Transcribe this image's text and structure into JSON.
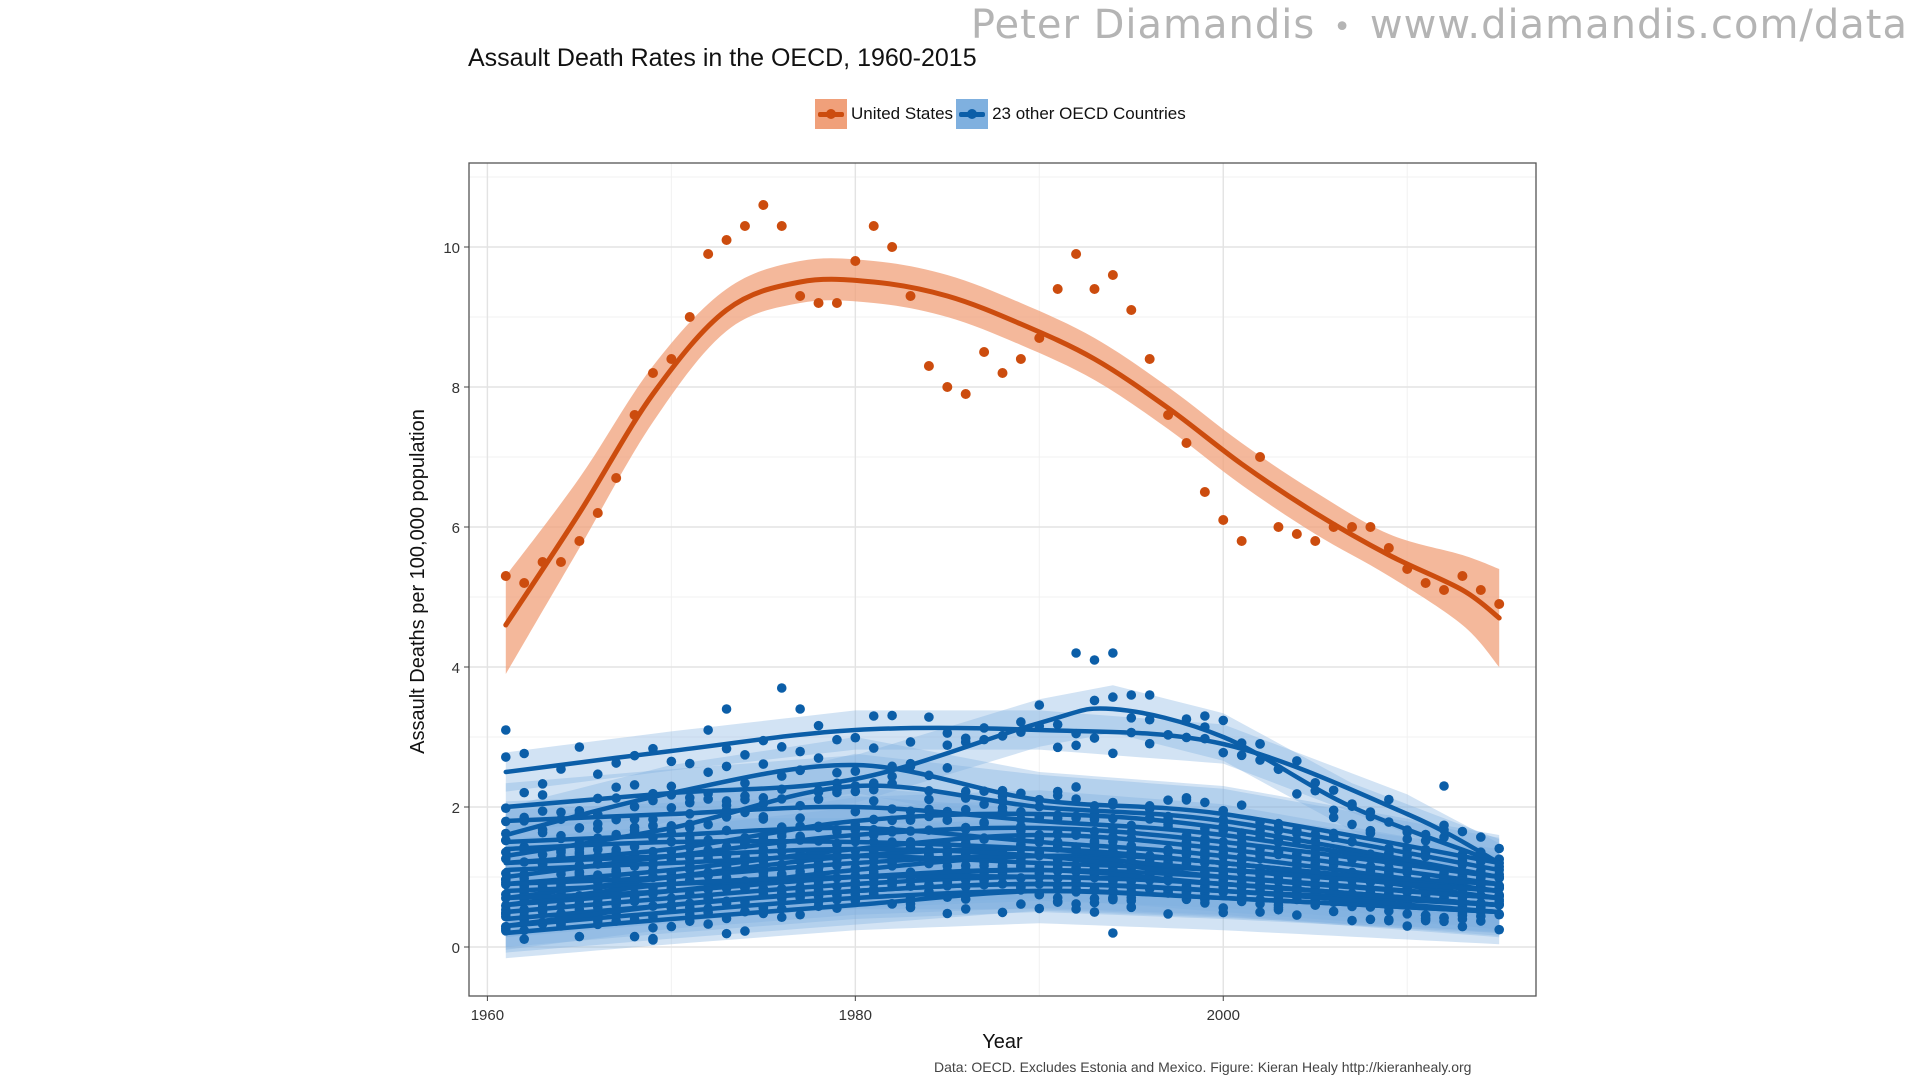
{
  "watermark": {
    "author": "Peter Diamandis",
    "separator": "•",
    "url": "www.diamandis.com/data"
  },
  "colors": {
    "us": "#cc4c0e",
    "us_band": "#f0a07a",
    "oecd": "#0b5ea8",
    "oecd_band": "#7fb0df"
  },
  "chart_data": {
    "type": "scatter",
    "title": "Assault Death Rates in the OECD, 1960-2015",
    "xlabel": "Year",
    "ylabel": "Assault Deaths per 100,000 population",
    "xlim": [
      1959,
      2017
    ],
    "ylim": [
      -0.7,
      11.2
    ],
    "xticks": [
      1960,
      1980,
      2000
    ],
    "yticks": [
      0,
      2,
      4,
      6,
      8,
      10
    ],
    "grid": true,
    "legend_position": "top",
    "caption": "Data: OECD. Excludes Estonia and Mexico. Figure: Kieran Healy http://kieranhealy.org",
    "series": [
      {
        "name": "United States",
        "color_key": "us",
        "points": [
          [
            1961,
            5.3
          ],
          [
            1962,
            5.2
          ],
          [
            1963,
            5.5
          ],
          [
            1964,
            5.5
          ],
          [
            1965,
            5.8
          ],
          [
            1966,
            6.2
          ],
          [
            1967,
            6.7
          ],
          [
            1968,
            7.6
          ],
          [
            1969,
            8.2
          ],
          [
            1970,
            8.4
          ],
          [
            1971,
            9.0
          ],
          [
            1972,
            9.9
          ],
          [
            1973,
            10.1
          ],
          [
            1974,
            10.3
          ],
          [
            1975,
            10.6
          ],
          [
            1976,
            10.3
          ],
          [
            1977,
            9.3
          ],
          [
            1978,
            9.2
          ],
          [
            1979,
            9.2
          ],
          [
            1980,
            9.8
          ],
          [
            1981,
            10.3
          ],
          [
            1982,
            10.0
          ],
          [
            1983,
            9.3
          ],
          [
            1984,
            8.3
          ],
          [
            1985,
            8.0
          ],
          [
            1986,
            7.9
          ],
          [
            1987,
            8.5
          ],
          [
            1988,
            8.2
          ],
          [
            1989,
            8.4
          ],
          [
            1990,
            8.7
          ],
          [
            1991,
            9.4
          ],
          [
            1992,
            9.9
          ],
          [
            1993,
            9.4
          ],
          [
            1994,
            9.6
          ],
          [
            1995,
            9.1
          ],
          [
            1996,
            8.4
          ],
          [
            1997,
            7.6
          ],
          [
            1998,
            7.2
          ],
          [
            1999,
            6.5
          ],
          [
            2000,
            6.1
          ],
          [
            2001,
            5.8
          ],
          [
            2002,
            7.0
          ],
          [
            2003,
            6.0
          ],
          [
            2004,
            5.9
          ],
          [
            2005,
            5.8
          ],
          [
            2006,
            6.0
          ],
          [
            2007,
            6.0
          ],
          [
            2008,
            6.0
          ],
          [
            2009,
            5.7
          ],
          [
            2010,
            5.4
          ],
          [
            2011,
            5.2
          ],
          [
            2012,
            5.1
          ],
          [
            2013,
            5.3
          ],
          [
            2014,
            5.1
          ],
          [
            2015,
            4.9
          ]
        ],
        "smooth": [
          [
            1961,
            4.6
          ],
          [
            1965,
            6.2
          ],
          [
            1969,
            7.9
          ],
          [
            1973,
            9.1
          ],
          [
            1977,
            9.5
          ],
          [
            1981,
            9.5
          ],
          [
            1985,
            9.3
          ],
          [
            1989,
            8.9
          ],
          [
            1993,
            8.4
          ],
          [
            1997,
            7.7
          ],
          [
            2001,
            6.9
          ],
          [
            2005,
            6.2
          ],
          [
            2009,
            5.6
          ],
          [
            2013,
            5.1
          ],
          [
            2015,
            4.7
          ]
        ],
        "band": [
          [
            1961,
            3.9,
            5.3
          ],
          [
            1965,
            5.7,
            6.7
          ],
          [
            1969,
            7.5,
            8.3
          ],
          [
            1973,
            8.8,
            9.4
          ],
          [
            1977,
            9.2,
            9.8
          ],
          [
            1981,
            9.2,
            9.8
          ],
          [
            1985,
            9.0,
            9.6
          ],
          [
            1989,
            8.6,
            9.2
          ],
          [
            1993,
            8.1,
            8.7
          ],
          [
            1997,
            7.4,
            8.0
          ],
          [
            2001,
            6.6,
            7.2
          ],
          [
            2005,
            5.9,
            6.5
          ],
          [
            2009,
            5.3,
            5.9
          ],
          [
            2013,
            4.6,
            5.6
          ],
          [
            2015,
            4.0,
            5.4
          ]
        ]
      },
      {
        "name": "23 other OECD Countries",
        "color_key": "oecd",
        "countries": [
          {
            "points": [
              [
                1961,
                2.5
              ],
              [
                1970,
                2.8
              ],
              [
                1980,
                3.1
              ],
              [
                1990,
                3.1
              ],
              [
                2000,
                2.9
              ],
              [
                2010,
                1.9
              ],
              [
                2015,
                1.2
              ]
            ]
          },
          {
            "points": [
              [
                1961,
                2.0
              ],
              [
                1970,
                2.2
              ],
              [
                1980,
                2.4
              ],
              [
                1990,
                3.2
              ],
              [
                1994,
                3.4
              ],
              [
                2000,
                3.0
              ],
              [
                2007,
                2.0
              ],
              [
                2015,
                1.2
              ]
            ]
          },
          {
            "points": [
              [
                1961,
                1.6
              ],
              [
                1970,
                2.2
              ],
              [
                1980,
                2.6
              ],
              [
                1990,
                2.1
              ],
              [
                2000,
                1.9
              ],
              [
                2015,
                1.2
              ]
            ]
          },
          {
            "points": [
              [
                1961,
                1.3
              ],
              [
                1970,
                1.7
              ],
              [
                1980,
                2.3
              ],
              [
                1990,
                2.0
              ],
              [
                2000,
                1.8
              ],
              [
                2015,
                1.1
              ]
            ]
          },
          {
            "points": [
              [
                1961,
                1.8
              ],
              [
                1970,
                1.9
              ],
              [
                1980,
                2.0
              ],
              [
                1990,
                1.8
              ],
              [
                2000,
                1.6
              ],
              [
                2015,
                1.0
              ]
            ]
          },
          {
            "points": [
              [
                1961,
                1.2
              ],
              [
                1970,
                1.4
              ],
              [
                1980,
                1.8
              ],
              [
                1990,
                1.9
              ],
              [
                2000,
                1.7
              ],
              [
                2015,
                1.0
              ]
            ]
          },
          {
            "points": [
              [
                1961,
                1.0
              ],
              [
                1970,
                1.3
              ],
              [
                1980,
                1.6
              ],
              [
                1990,
                1.7
              ],
              [
                2000,
                1.5
              ],
              [
                2015,
                1.0
              ]
            ]
          },
          {
            "points": [
              [
                1961,
                1.5
              ],
              [
                1970,
                1.6
              ],
              [
                1980,
                1.7
              ],
              [
                1990,
                1.5
              ],
              [
                2000,
                1.3
              ],
              [
                2015,
                0.8
              ]
            ]
          },
          {
            "points": [
              [
                1961,
                0.9
              ],
              [
                1970,
                1.1
              ],
              [
                1980,
                1.4
              ],
              [
                1990,
                1.6
              ],
              [
                2000,
                1.4
              ],
              [
                2015,
                0.9
              ]
            ]
          },
          {
            "points": [
              [
                1961,
                0.7
              ],
              [
                1970,
                1.0
              ],
              [
                1980,
                1.3
              ],
              [
                1990,
                1.4
              ],
              [
                2000,
                1.2
              ],
              [
                2015,
                0.8
              ]
            ]
          },
          {
            "points": [
              [
                1961,
                1.1
              ],
              [
                1970,
                1.2
              ],
              [
                1980,
                1.3
              ],
              [
                1990,
                1.2
              ],
              [
                2000,
                1.1
              ],
              [
                2015,
                0.9
              ]
            ]
          },
          {
            "points": [
              [
                1961,
                0.6
              ],
              [
                1970,
                0.8
              ],
              [
                1980,
                1.1
              ],
              [
                1990,
                1.3
              ],
              [
                2000,
                1.2
              ],
              [
                2015,
                0.7
              ]
            ]
          },
          {
            "points": [
              [
                1961,
                0.8
              ],
              [
                1970,
                0.9
              ],
              [
                1980,
                1.0
              ],
              [
                1990,
                1.1
              ],
              [
                2000,
                1.0
              ],
              [
                2015,
                0.7
              ]
            ]
          },
          {
            "points": [
              [
                1961,
                0.5
              ],
              [
                1970,
                0.7
              ],
              [
                1980,
                0.9
              ],
              [
                1990,
                1.0
              ],
              [
                2000,
                0.9
              ],
              [
                2015,
                0.6
              ]
            ]
          },
          {
            "points": [
              [
                1961,
                0.4
              ],
              [
                1970,
                0.6
              ],
              [
                1980,
                0.8
              ],
              [
                1990,
                0.9
              ],
              [
                2000,
                0.8
              ],
              [
                2015,
                0.6
              ]
            ]
          },
          {
            "points": [
              [
                1961,
                0.3
              ],
              [
                1970,
                0.5
              ],
              [
                1980,
                0.7
              ],
              [
                1990,
                0.8
              ],
              [
                2000,
                0.7
              ],
              [
                2015,
                0.5
              ]
            ]
          },
          {
            "points": [
              [
                1961,
                0.2
              ],
              [
                1970,
                0.4
              ],
              [
                1980,
                0.6
              ],
              [
                1990,
                0.8
              ],
              [
                2000,
                0.7
              ],
              [
                2015,
                0.5
              ]
            ]
          },
          {
            "points": [
              [
                1961,
                1.4
              ],
              [
                1970,
                1.5
              ],
              [
                1980,
                1.5
              ],
              [
                1990,
                1.4
              ],
              [
                2000,
                1.2
              ],
              [
                2015,
                0.8
              ]
            ]
          },
          {
            "points": [
              [
                1961,
                0.9
              ],
              [
                1970,
                1.0
              ],
              [
                1980,
                1.2
              ],
              [
                1990,
                1.3
              ],
              [
                2000,
                1.1
              ],
              [
                2015,
                0.8
              ]
            ]
          },
          {
            "points": [
              [
                1961,
                0.6
              ],
              [
                1970,
                0.9
              ],
              [
                1980,
                1.0
              ],
              [
                1990,
                1.0
              ],
              [
                2000,
                0.9
              ],
              [
                2015,
                0.6
              ]
            ]
          },
          {
            "points": [
              [
                1961,
                1.2
              ],
              [
                1970,
                1.3
              ],
              [
                1980,
                1.4
              ],
              [
                1990,
                1.3
              ],
              [
                2000,
                1.0
              ],
              [
                2015,
                0.7
              ]
            ]
          },
          {
            "points": [
              [
                1961,
                0.3
              ],
              [
                1970,
                0.6
              ],
              [
                1980,
                0.8
              ],
              [
                1990,
                0.9
              ],
              [
                2000,
                0.8
              ],
              [
                2015,
                0.5
              ]
            ]
          },
          {
            "points": [
              [
                1961,
                0.7
              ],
              [
                1970,
                0.8
              ],
              [
                1980,
                1.0
              ],
              [
                1990,
                1.1
              ],
              [
                2000,
                0.9
              ],
              [
                2015,
                0.6
              ]
            ]
          }
        ],
        "highlight_points": [
          [
            1961,
            3.1
          ],
          [
            1973,
            3.4
          ],
          [
            1976,
            3.7
          ],
          [
            1977,
            3.4
          ],
          [
            1981,
            3.3
          ],
          [
            1992,
            4.2
          ],
          [
            1993,
            4.1
          ],
          [
            1994,
            4.2
          ],
          [
            1995,
            3.6
          ],
          [
            1996,
            3.6
          ],
          [
            1999,
            3.3
          ],
          [
            2002,
            2.9
          ],
          [
            2012,
            2.3
          ],
          [
            1994,
            0.2
          ],
          [
            1969,
            0.1
          ],
          [
            2015,
            1.2
          ]
        ]
      }
    ]
  }
}
